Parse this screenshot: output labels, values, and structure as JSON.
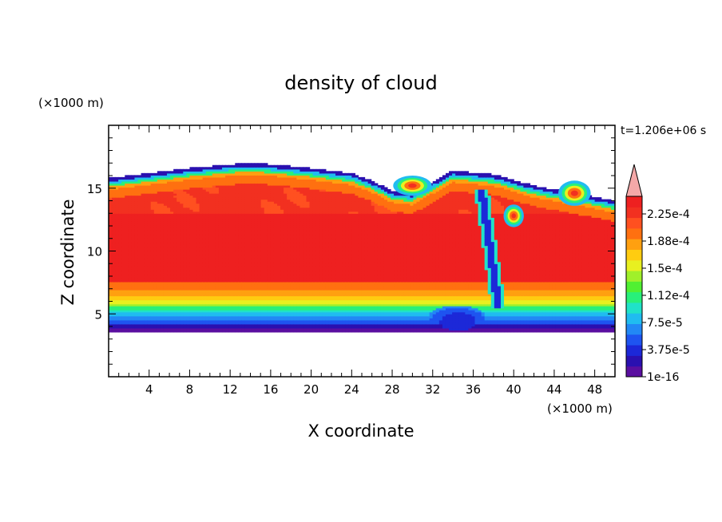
{
  "chart_data": {
    "type": "heatmap",
    "title": "density of cloud",
    "xlabel": "X coordinate",
    "ylabel": "Z coordinate",
    "x_unit": "(×1000 m)",
    "y_unit": "(×1000 m)",
    "time_label": "t=1.206e+06 s",
    "xlim": [
      0,
      50
    ],
    "ylim": [
      0,
      20
    ],
    "x_ticks": [
      4,
      8,
      12,
      16,
      20,
      24,
      28,
      32,
      36,
      40,
      44,
      48
    ],
    "y_ticks": [
      5,
      10,
      15
    ],
    "colorbar": {
      "labels": [
        "2.25e-4",
        "1.88e-4",
        "1.5e-4",
        "1.12e-4",
        "7.5e-5",
        "3.75e-5",
        "1e-16"
      ],
      "levels": [
        "#5a0fa0",
        "#2a10b0",
        "#1c28d8",
        "#1e54f0",
        "#2288f5",
        "#20bcf0",
        "#20e2c8",
        "#28f07a",
        "#50f032",
        "#a0f02a",
        "#e8f020",
        "#ffcc10",
        "#ffa010",
        "#ff7010",
        "#ff5020",
        "#f23020",
        "#ee2020"
      ],
      "extend_color": "#f4a8a8"
    },
    "regions": {
      "cloud_top_km": [
        15.8,
        16.2,
        16.6,
        16.9,
        17.0,
        16.9,
        16.6,
        16.2,
        15.6,
        14.8,
        14.6,
        15.5,
        16.4,
        16.1,
        15.2,
        14.0
      ],
      "cloud_top_x_km": [
        0,
        4,
        8,
        12,
        14,
        16,
        20,
        24,
        26,
        28,
        30,
        32,
        34,
        38,
        42,
        50
      ],
      "cloud_base_km": 3.5,
      "core_range_km": [
        7.5,
        13.0
      ]
    }
  }
}
